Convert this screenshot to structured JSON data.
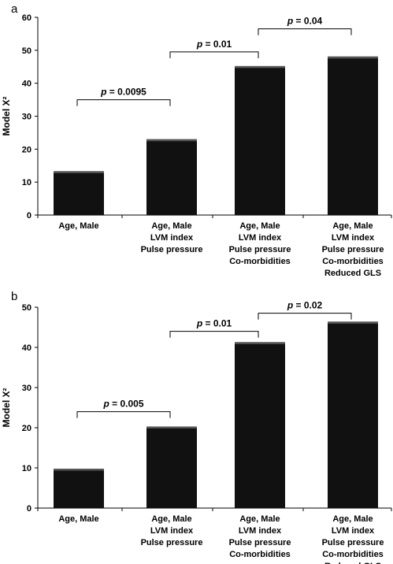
{
  "chart_data": [
    {
      "panel": "a",
      "type": "bar",
      "categories": [
        [
          "Age, Male"
        ],
        [
          "Age, Male",
          "LVM index",
          "Pulse pressure"
        ],
        [
          "Age, Male",
          "LVM index",
          "Pulse pressure",
          "Co-morbidities"
        ],
        [
          "Age, Male",
          "LVM index",
          "Pulse pressure",
          "Co-morbidities",
          "Reduced GLS"
        ]
      ],
      "values": [
        13.3,
        23.0,
        45.2,
        48.1
      ],
      "ylabel": "Model X²",
      "ylim": [
        0,
        60
      ],
      "yticks": [
        0,
        10,
        20,
        30,
        40,
        50,
        60
      ],
      "bar_color": "#111111",
      "annotations": [
        {
          "from": 0,
          "to": 1,
          "text": "p = 0.0095",
          "level": 35
        },
        {
          "from": 1,
          "to": 2,
          "text": "p = 0.01",
          "level": 49.5
        },
        {
          "from": 2,
          "to": 3,
          "text": "p = 0.04",
          "level": 56.5
        }
      ]
    },
    {
      "panel": "b",
      "type": "bar",
      "categories": [
        [
          "Age, Male"
        ],
        [
          "Age, Male",
          "LVM index",
          "Pulse pressure"
        ],
        [
          "Age, Male",
          "LVM index",
          "Pulse pressure",
          "Co-morbidities"
        ],
        [
          "Age, Male",
          "LVM index",
          "Pulse pressure",
          "Co-morbidities",
          "Reduced GLS"
        ]
      ],
      "values": [
        9.8,
        20.3,
        41.3,
        46.4
      ],
      "ylabel": "Model X²",
      "ylim": [
        0,
        50
      ],
      "yticks": [
        0,
        10,
        20,
        30,
        40,
        50
      ],
      "bar_color": "#111111",
      "annotations": [
        {
          "from": 0,
          "to": 1,
          "text": "p = 0.005",
          "level": 24
        },
        {
          "from": 1,
          "to": 2,
          "text": "p = 0.01",
          "level": 44
        },
        {
          "from": 2,
          "to": 3,
          "text": "p = 0.02",
          "level": 48.5
        }
      ]
    }
  ]
}
